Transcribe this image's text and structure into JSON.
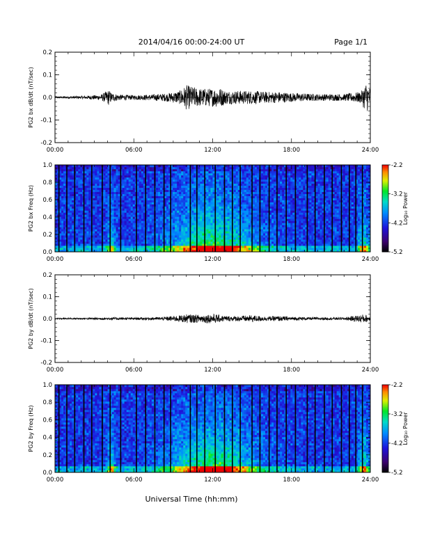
{
  "header": {
    "title": "2014/04/16  00:00-24:00 UT",
    "page": "Page 1/1"
  },
  "footer": {
    "xlabel": "Universal Time (hh:mm)"
  },
  "time_ticks": [
    "00:00",
    "06:00",
    "12:00",
    "18:00",
    "24:00"
  ],
  "chart_data": [
    {
      "type": "line",
      "ylabel": "PG2 bx dB/dt (nT/sec)",
      "xlabel": "",
      "xlim": [
        0,
        24
      ],
      "ylim": [
        -0.2,
        0.2
      ],
      "yticks": [
        -0.2,
        -0.1,
        0.0,
        0.1,
        0.2
      ],
      "ytick_labels": [
        "-0.2",
        "-0.1",
        "0.0",
        "0.1",
        "0.2"
      ],
      "envelope_x_hours": [
        0,
        2,
        3.5,
        4.1,
        4.3,
        5,
        6,
        7,
        8.5,
        9.5,
        10,
        11,
        12,
        12.5,
        13,
        14,
        15,
        16,
        17,
        18,
        20,
        22,
        23.3,
        23.7,
        24
      ],
      "envelope_amplitude": [
        0.004,
        0.006,
        0.012,
        0.035,
        0.02,
        0.012,
        0.01,
        0.012,
        0.018,
        0.03,
        0.055,
        0.04,
        0.04,
        0.045,
        0.03,
        0.03,
        0.03,
        0.025,
        0.025,
        0.02,
        0.015,
        0.015,
        0.025,
        0.07,
        0.04
      ]
    },
    {
      "type": "heatmap",
      "ylabel": "PG2 bx Freq (Hz)",
      "xlabel": "",
      "xlim": [
        0,
        24
      ],
      "ylim": [
        0,
        1
      ],
      "yticks": [
        0.0,
        0.2,
        0.4,
        0.6,
        0.8,
        1.0
      ],
      "ytick_labels": [
        "0.0",
        "0.2",
        "0.4",
        "0.6",
        "0.8",
        "1.0"
      ],
      "colorbar": {
        "label": "Log₁₀ Power",
        "range": [
          -5.2,
          -2.2
        ],
        "ticks": [
          "-2.2",
          "-3.2",
          "-4.2",
          "-5.2"
        ]
      },
      "gap_times_hours": [
        0.3,
        0.9,
        1.5,
        2.2,
        2.8,
        3.6,
        4.2,
        5.0,
        6.2,
        6.9,
        7.6,
        8.3,
        8.8,
        10.3,
        10.8,
        11.4,
        12.2,
        12.9,
        13.5,
        14.1,
        15.0,
        15.6,
        16.3,
        16.9,
        17.6,
        18.3,
        19.2,
        19.8,
        20.5,
        21.1,
        21.8,
        22.4,
        22.9,
        23.4
      ]
    },
    {
      "type": "line",
      "ylabel": "PG2 by dB/dt (nT/sec)",
      "xlabel": "",
      "xlim": [
        0,
        24
      ],
      "ylim": [
        -0.2,
        0.2
      ],
      "yticks": [
        -0.2,
        -0.1,
        0.0,
        0.1,
        0.2
      ],
      "ytick_labels": [
        "-0.2",
        "-0.1",
        "0.0",
        "0.1",
        "0.2"
      ],
      "envelope_x_hours": [
        0,
        2,
        4,
        5,
        6,
        8,
        9.5,
        10,
        11,
        12,
        13,
        14,
        15,
        16,
        17,
        18,
        20,
        22,
        23.5,
        24
      ],
      "envelope_amplitude": [
        0.003,
        0.004,
        0.006,
        0.006,
        0.005,
        0.007,
        0.015,
        0.02,
        0.018,
        0.022,
        0.012,
        0.012,
        0.016,
        0.01,
        0.012,
        0.008,
        0.006,
        0.006,
        0.02,
        0.01
      ]
    },
    {
      "type": "heatmap",
      "ylabel": "PG2 by Freq (Hz)",
      "xlabel": "",
      "xlim": [
        0,
        24
      ],
      "ylim": [
        0,
        1
      ],
      "yticks": [
        0.0,
        0.2,
        0.4,
        0.6,
        0.8,
        1.0
      ],
      "ytick_labels": [
        "0.0",
        "0.2",
        "0.4",
        "0.6",
        "0.8",
        "1.0"
      ],
      "colorbar": {
        "label": "Log₁₀ Power",
        "range": [
          -5.2,
          -2.2
        ],
        "ticks": [
          "-2.2",
          "-3.2",
          "-4.2",
          "-5.2"
        ]
      },
      "gap_times_hours": [
        0.3,
        0.9,
        1.5,
        2.2,
        2.8,
        3.6,
        4.2,
        5.0,
        6.2,
        6.9,
        7.6,
        8.3,
        8.8,
        10.3,
        10.8,
        11.4,
        12.2,
        12.9,
        13.5,
        14.1,
        15.0,
        15.6,
        16.3,
        16.9,
        17.6,
        18.3,
        19.2,
        19.8,
        20.5,
        21.1,
        21.8,
        22.4,
        22.9,
        23.4
      ]
    }
  ]
}
